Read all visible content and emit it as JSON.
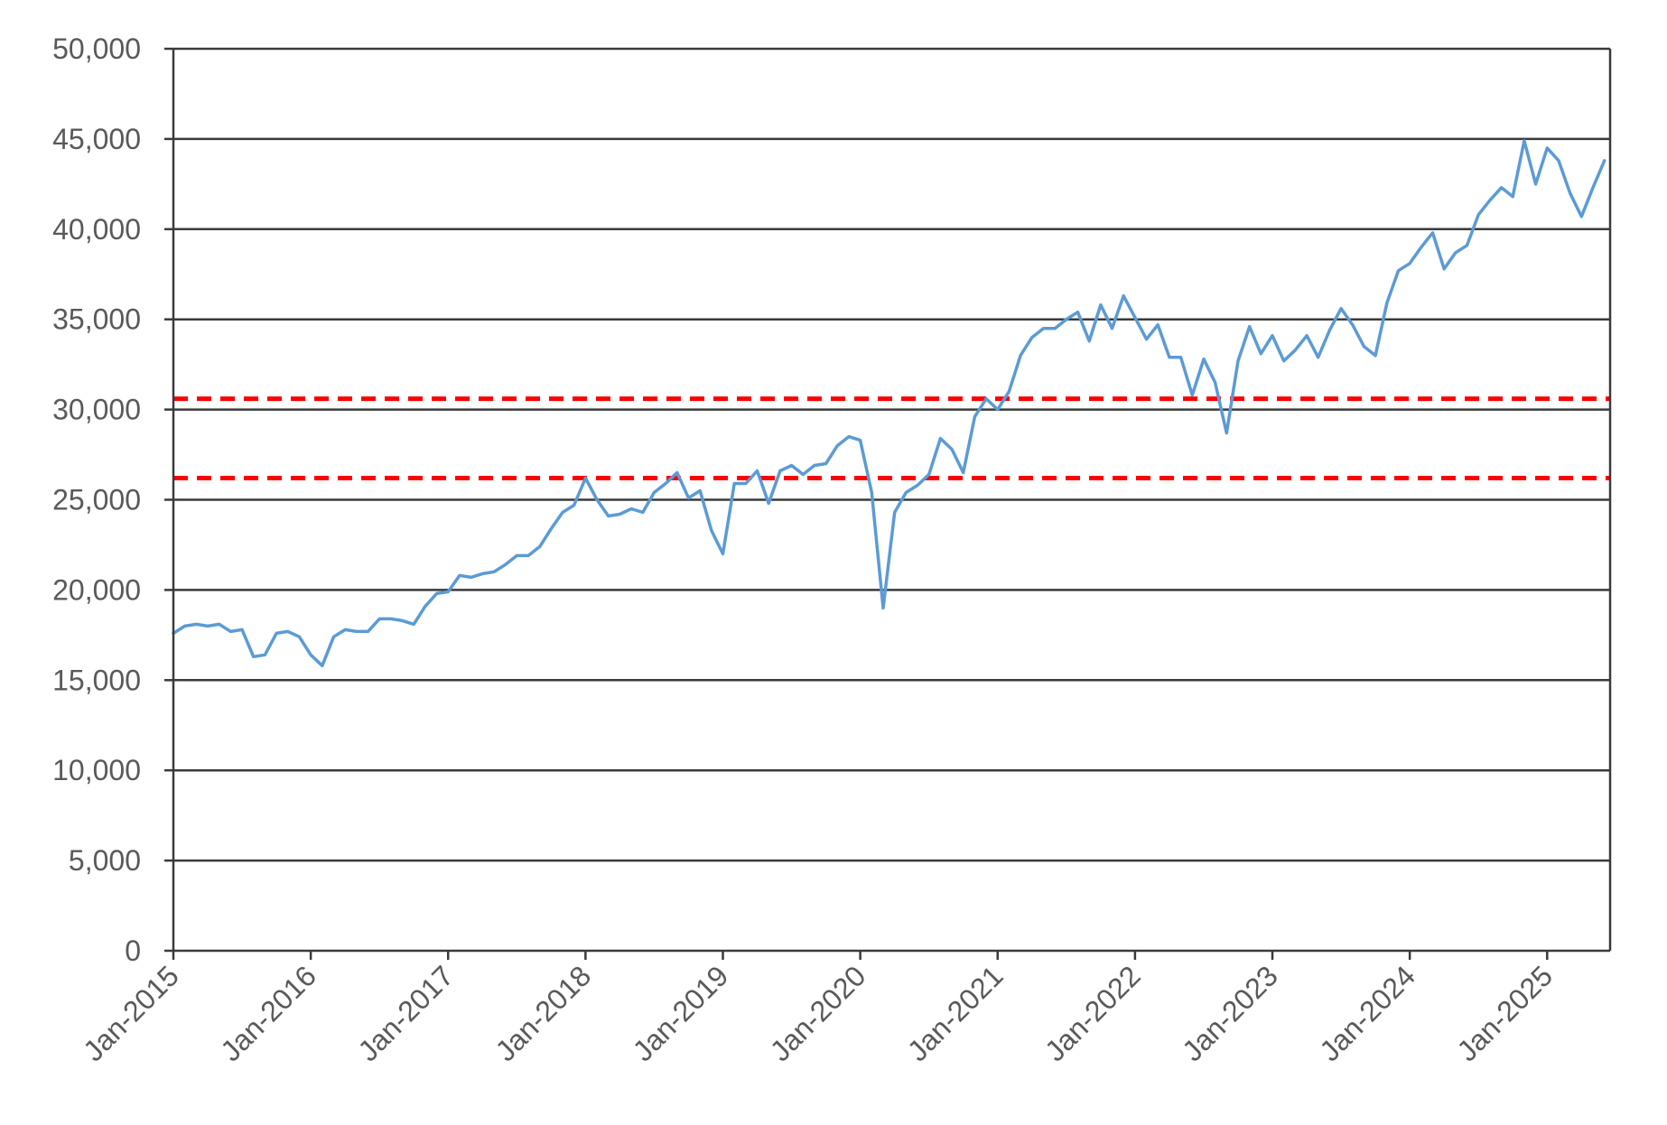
{
  "chart_data": {
    "type": "line",
    "title": "",
    "xlabel": "",
    "ylabel": "",
    "ylim": [
      0,
      50000
    ],
    "xlim": [
      "2015-01",
      "2025-06"
    ],
    "y_ticks": [
      "0",
      "5,000",
      "10,000",
      "15,000",
      "20,000",
      "25,000",
      "30,000",
      "35,000",
      "40,000",
      "45,000",
      "50,000"
    ],
    "x_ticks": [
      "Jan-2015",
      "Jan-2016",
      "Jan-2017",
      "Jan-2018",
      "Jan-2019",
      "Jan-2020",
      "Jan-2021",
      "Jan-2022",
      "Jan-2023",
      "Jan-2024",
      "Jan-2025"
    ],
    "grid": "horizontal",
    "legend": "none",
    "series": [
      {
        "color": "#5b9bd5",
        "points": [
          [
            "2015-01",
            17600
          ],
          [
            "2015-02",
            18000
          ],
          [
            "2015-03",
            18100
          ],
          [
            "2015-04",
            18000
          ],
          [
            "2015-05",
            18100
          ],
          [
            "2015-06",
            17700
          ],
          [
            "2015-07",
            17800
          ],
          [
            "2015-08",
            16300
          ],
          [
            "2015-09",
            16400
          ],
          [
            "2015-10",
            17600
          ],
          [
            "2015-11",
            17700
          ],
          [
            "2015-12",
            17400
          ],
          [
            "2016-01",
            16400
          ],
          [
            "2016-02",
            15800
          ],
          [
            "2016-03",
            17400
          ],
          [
            "2016-04",
            17800
          ],
          [
            "2016-05",
            17700
          ],
          [
            "2016-06",
            17700
          ],
          [
            "2016-07",
            18400
          ],
          [
            "2016-08",
            18400
          ],
          [
            "2016-09",
            18300
          ],
          [
            "2016-10",
            18100
          ],
          [
            "2016-11",
            19100
          ],
          [
            "2016-12",
            19800
          ],
          [
            "2017-01",
            19900
          ],
          [
            "2017-02",
            20800
          ],
          [
            "2017-03",
            20700
          ],
          [
            "2017-04",
            20900
          ],
          [
            "2017-05",
            21000
          ],
          [
            "2017-06",
            21400
          ],
          [
            "2017-07",
            21900
          ],
          [
            "2017-08",
            21900
          ],
          [
            "2017-09",
            22400
          ],
          [
            "2017-10",
            23400
          ],
          [
            "2017-11",
            24300
          ],
          [
            "2017-12",
            24700
          ],
          [
            "2018-01",
            26200
          ],
          [
            "2018-02",
            25000
          ],
          [
            "2018-03",
            24100
          ],
          [
            "2018-04",
            24200
          ],
          [
            "2018-05",
            24500
          ],
          [
            "2018-06",
            24300
          ],
          [
            "2018-07",
            25400
          ],
          [
            "2018-08",
            25900
          ],
          [
            "2018-09",
            26500
          ],
          [
            "2018-10",
            25100
          ],
          [
            "2018-11",
            25500
          ],
          [
            "2018-12",
            23300
          ],
          [
            "2019-01",
            22000
          ],
          [
            "2019-02",
            25900
          ],
          [
            "2019-03",
            25900
          ],
          [
            "2019-04",
            26600
          ],
          [
            "2019-05",
            24800
          ],
          [
            "2019-06",
            26600
          ],
          [
            "2019-07",
            26900
          ],
          [
            "2019-08",
            26400
          ],
          [
            "2019-09",
            26900
          ],
          [
            "2019-10",
            27000
          ],
          [
            "2019-11",
            28000
          ],
          [
            "2019-12",
            28500
          ],
          [
            "2020-01",
            28300
          ],
          [
            "2020-02",
            25400
          ],
          [
            "2020-03",
            19000
          ],
          [
            "2020-04",
            24300
          ],
          [
            "2020-05",
            25400
          ],
          [
            "2020-06",
            25800
          ],
          [
            "2020-07",
            26400
          ],
          [
            "2020-08",
            28400
          ],
          [
            "2020-09",
            27800
          ],
          [
            "2020-10",
            26500
          ],
          [
            "2020-11",
            29600
          ],
          [
            "2020-12",
            30600
          ],
          [
            "2021-01",
            30000
          ],
          [
            "2021-02",
            31000
          ],
          [
            "2021-03",
            33000
          ],
          [
            "2021-04",
            34000
          ],
          [
            "2021-05",
            34500
          ],
          [
            "2021-06",
            34500
          ],
          [
            "2021-07",
            35000
          ],
          [
            "2021-08",
            35400
          ],
          [
            "2021-09",
            33800
          ],
          [
            "2021-10",
            35800
          ],
          [
            "2021-11",
            34500
          ],
          [
            "2021-12",
            36300
          ],
          [
            "2022-01",
            35100
          ],
          [
            "2022-02",
            33900
          ],
          [
            "2022-03",
            34700
          ],
          [
            "2022-04",
            32900
          ],
          [
            "2022-05",
            32900
          ],
          [
            "2022-06",
            30800
          ],
          [
            "2022-07",
            32800
          ],
          [
            "2022-08",
            31500
          ],
          [
            "2022-09",
            28700
          ],
          [
            "2022-10",
            32700
          ],
          [
            "2022-11",
            34600
          ],
          [
            "2022-12",
            33100
          ],
          [
            "2023-01",
            34100
          ],
          [
            "2023-02",
            32700
          ],
          [
            "2023-03",
            33300
          ],
          [
            "2023-04",
            34100
          ],
          [
            "2023-05",
            32900
          ],
          [
            "2023-06",
            34400
          ],
          [
            "2023-07",
            35600
          ],
          [
            "2023-08",
            34700
          ],
          [
            "2023-09",
            33500
          ],
          [
            "2023-10",
            33000
          ],
          [
            "2023-11",
            35900
          ],
          [
            "2023-12",
            37700
          ],
          [
            "2024-01",
            38100
          ],
          [
            "2024-02",
            39000
          ],
          [
            "2024-03",
            39800
          ],
          [
            "2024-04",
            37800
          ],
          [
            "2024-05",
            38700
          ],
          [
            "2024-06",
            39100
          ],
          [
            "2024-07",
            40800
          ],
          [
            "2024-08",
            41600
          ],
          [
            "2024-09",
            42300
          ],
          [
            "2024-10",
            41800
          ],
          [
            "2024-11",
            44900
          ],
          [
            "2024-12",
            42500
          ],
          [
            "2025-01",
            44500
          ],
          [
            "2025-02",
            43800
          ],
          [
            "2025-03",
            42000
          ],
          [
            "2025-04",
            40700
          ],
          [
            "2025-05",
            42300
          ],
          [
            "2025-06",
            43800
          ]
        ]
      }
    ],
    "reference_lines": [
      {
        "y": 30600,
        "style": "dashed",
        "color": "#ff0000"
      },
      {
        "y": 26200,
        "style": "dashed",
        "color": "#ff0000"
      }
    ]
  }
}
